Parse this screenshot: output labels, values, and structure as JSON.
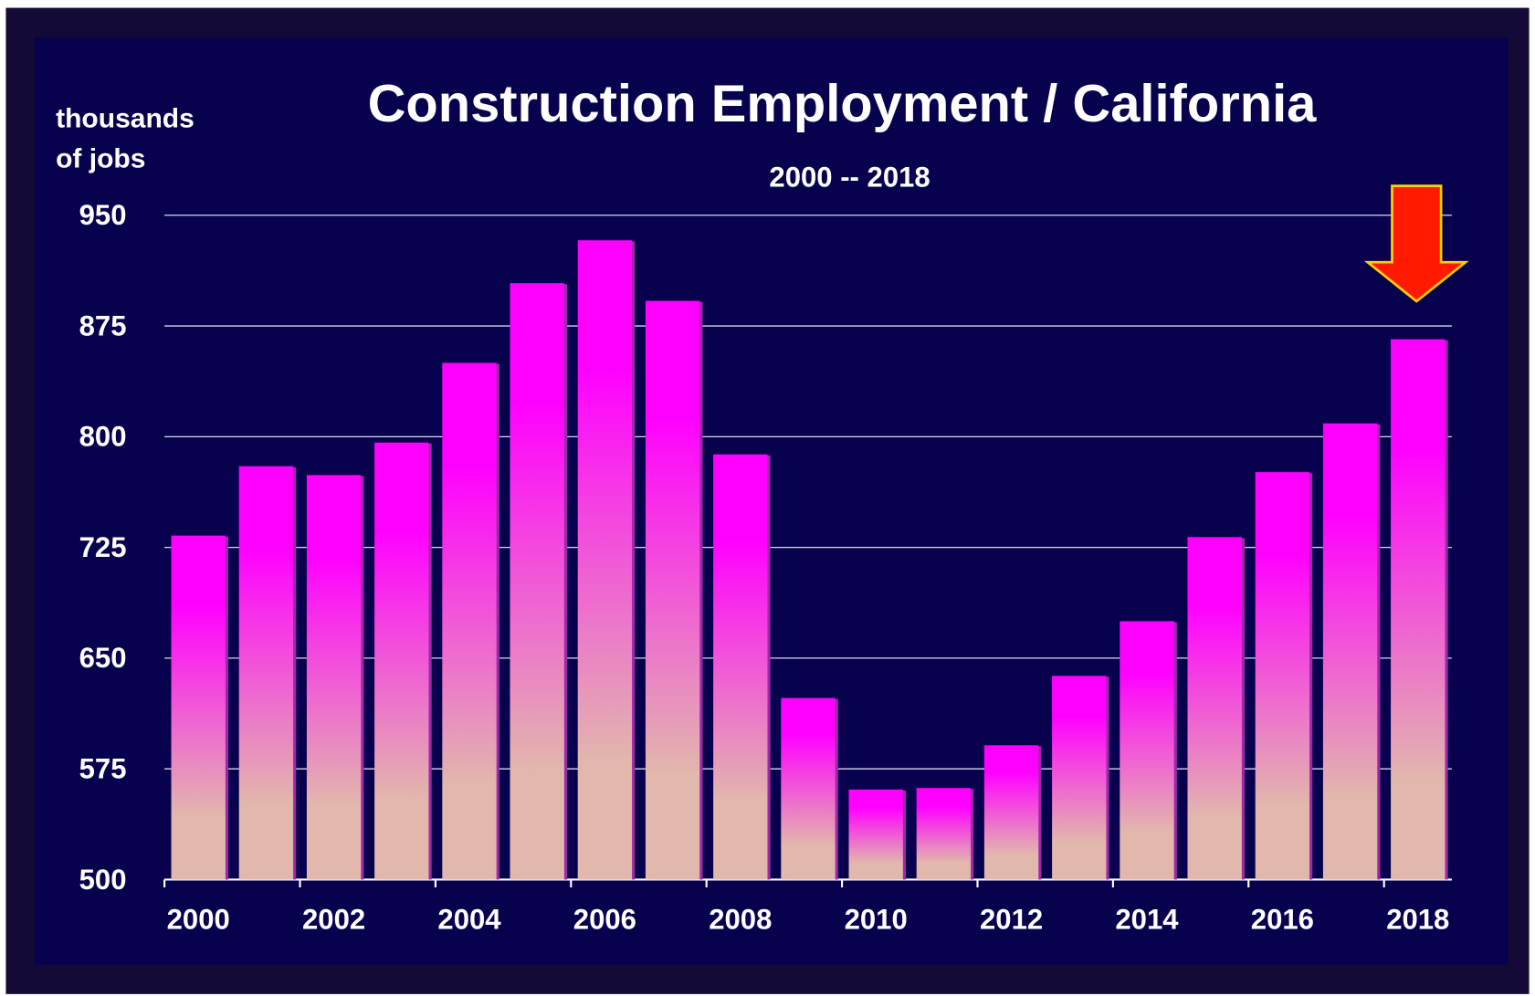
{
  "chart_data": {
    "type": "bar",
    "title": "Construction Employment / California",
    "subtitle": "2000 -- 2018",
    "y_label": [
      "thousands",
      "of jobs"
    ],
    "categories": [
      "2000",
      null,
      "2002",
      null,
      "2004",
      null,
      "2006",
      null,
      "2008",
      null,
      "2010",
      null,
      "2012",
      null,
      "2014",
      null,
      "2016",
      null,
      "2018"
    ],
    "values": [
      733,
      780,
      774,
      796,
      850,
      904,
      933,
      892,
      788,
      623,
      561,
      562,
      591,
      638,
      675,
      732,
      776,
      809,
      866
    ],
    "color_top": "#ff00ff",
    "color_bottom": "#e2b8ac",
    "ylim": [
      500,
      950
    ],
    "yticks": [
      500,
      575,
      650,
      725,
      800,
      875,
      950
    ],
    "grid": true
  }
}
